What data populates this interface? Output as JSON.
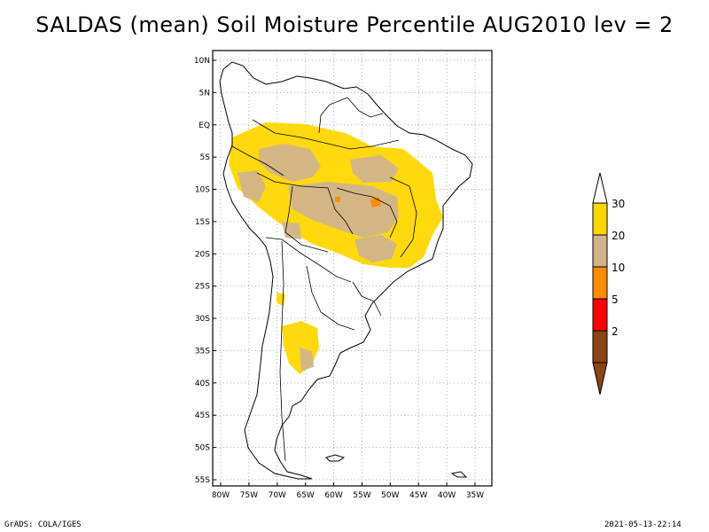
{
  "title": "SALDAS (mean) Soil Moisture Percentile AUG2010 lev = 2",
  "footer": {
    "left": "GrADS: COLA/IGES",
    "right": "2021-05-13-22:14"
  },
  "axes": {
    "lon_labels": [
      "80W",
      "75W",
      "70W",
      "65W",
      "60W",
      "55W",
      "50W",
      "45W",
      "40W",
      "35W"
    ],
    "lat_labels": [
      "10N",
      "5N",
      "EQ",
      "5S",
      "10S",
      "15S",
      "20S",
      "25S",
      "30S",
      "35S",
      "40S",
      "45S",
      "50S",
      "55S"
    ],
    "lon_range": [
      -80,
      -33
    ],
    "lat_range": [
      -56,
      12
    ]
  },
  "legend": {
    "bins": [
      {
        "label": "2",
        "color": "#8b4513"
      },
      {
        "label": "5",
        "color": "#ff0000"
      },
      {
        "label": "10",
        "color": "#ff8c00"
      },
      {
        "label": "20",
        "color": "#d2b48c"
      },
      {
        "label": "30",
        "color": "#ffd700"
      }
    ],
    "top_color": "#ffffff"
  },
  "colors": {
    "tan": "#d2b48c",
    "gold": "#ffd700",
    "orange": "#ff8c00",
    "border": "#000000",
    "grid": "#aaaaaa"
  }
}
